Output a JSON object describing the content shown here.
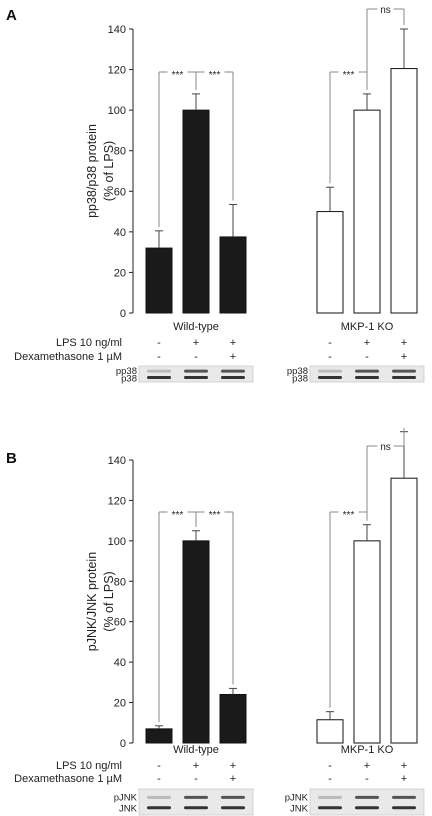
{
  "chart_data": [
    {
      "panel": "A",
      "type": "bar",
      "ylabel": [
        "pp38/p38 protein",
        "(% of LPS)"
      ],
      "ylim": [
        0,
        140
      ],
      "yticks": [
        0,
        20,
        40,
        60,
        80,
        100,
        120,
        140
      ],
      "groups": [
        {
          "name": "Wild-type",
          "fill": "#1a1a1a",
          "values": [
            32,
            100,
            37.5
          ],
          "errors": [
            8.5,
            8,
            16
          ],
          "lps": [
            "-",
            "+",
            "+"
          ],
          "dex": [
            "-",
            "-",
            "+"
          ]
        },
        {
          "name": "MKP-1 KO",
          "fill": "#ffffff",
          "values": [
            50,
            100,
            120.5
          ],
          "errors": [
            12,
            8,
            19.5
          ],
          "lps": [
            "-",
            "+",
            "+"
          ],
          "dex": [
            "-",
            "-",
            "+"
          ]
        }
      ],
      "significance": [
        {
          "group": 0,
          "from": 0,
          "to": 1,
          "label": "***"
        },
        {
          "group": 0,
          "from": 1,
          "to": 2,
          "label": "***"
        },
        {
          "group": 1,
          "from": 0,
          "to": 1,
          "label": "***"
        },
        {
          "group": 1,
          "from": 1,
          "to": 2,
          "label": "ns"
        }
      ],
      "blots": [
        {
          "group": 0,
          "labels": [
            "pp38",
            "p38"
          ]
        },
        {
          "group": 1,
          "labels": [
            "pp38",
            "p38"
          ]
        }
      ]
    },
    {
      "panel": "B",
      "type": "bar",
      "ylabel": [
        "pJNK/JNK protein",
        "(% of LPS)"
      ],
      "ylim": [
        0,
        140
      ],
      "yticks": [
        0,
        20,
        40,
        60,
        80,
        100,
        120,
        140
      ],
      "groups": [
        {
          "name": "Wild-type",
          "fill": "#1a1a1a",
          "values": [
            7,
            100,
            24
          ],
          "errors": [
            1.5,
            5,
            3
          ],
          "lps": [
            "-",
            "+",
            "+"
          ],
          "dex": [
            "-",
            "-",
            "+"
          ]
        },
        {
          "name": "MKP-1 KO",
          "fill": "#ffffff",
          "values": [
            11.5,
            100,
            131
          ],
          "errors": [
            4,
            8,
            23
          ],
          "lps": [
            "-",
            "+",
            "+"
          ],
          "dex": [
            "-",
            "-",
            "+"
          ]
        }
      ],
      "significance": [
        {
          "group": 0,
          "from": 0,
          "to": 1,
          "label": "***"
        },
        {
          "group": 0,
          "from": 1,
          "to": 2,
          "label": "***"
        },
        {
          "group": 1,
          "from": 0,
          "to": 1,
          "label": "***"
        },
        {
          "group": 1,
          "from": 1,
          "to": 2,
          "label": "ns"
        }
      ],
      "blots": [
        {
          "group": 0,
          "labels": [
            "pJNK",
            "JNK"
          ]
        },
        {
          "group": 1,
          "labels": [
            "pJNK",
            "JNK"
          ]
        }
      ]
    }
  ],
  "treatments": {
    "lps_label": "LPS 10 ng/ml",
    "dex_label": "Dexamethasone 1 µM"
  }
}
